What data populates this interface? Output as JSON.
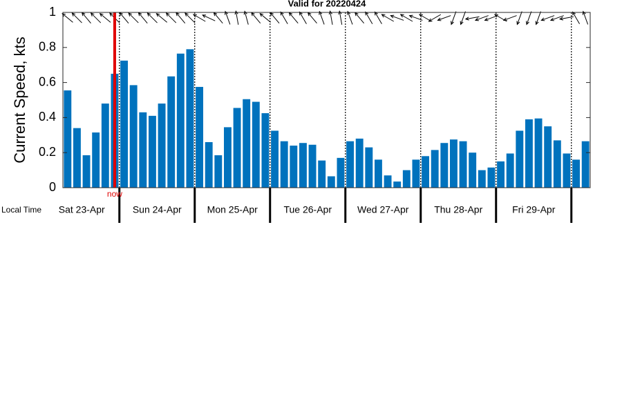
{
  "chart_data": {
    "type": "bar",
    "title": "Valid for 20220424",
    "ylabel": "Current Speed, kts",
    "xlabel": "Local Time",
    "color": "#0072bd",
    "x": [
      7.5,
      10.5,
      13.5,
      16.5,
      19.5,
      22.5,
      25.5,
      28.5,
      31.5,
      34.5,
      37.5,
      40.5,
      43.5,
      46.5,
      49.5,
      52.5,
      55.5,
      58.5,
      61.5,
      64.5,
      67.5,
      70.5,
      73.5,
      76.5,
      79.5,
      82.5,
      85.5,
      88.5,
      91.5,
      94.5,
      97.5,
      100.5,
      103.5,
      106.5,
      109.5,
      112.5,
      115.5,
      118.5,
      121.5,
      124.5,
      127.5,
      130.5,
      133.5,
      136.5,
      139.5,
      142.5,
      145.5,
      148.5,
      151.5,
      154.5,
      157.5,
      160.5,
      163.5,
      166.5,
      169.5,
      172.5
    ],
    "values": [
      0.555,
      0.34,
      0.185,
      0.315,
      0.48,
      0.65,
      0.725,
      0.585,
      0.43,
      0.41,
      0.48,
      0.635,
      0.765,
      0.79,
      0.575,
      0.26,
      0.185,
      0.345,
      0.455,
      0.505,
      0.49,
      0.425,
      0.325,
      0.265,
      0.24,
      0.255,
      0.245,
      0.155,
      0.065,
      0.17,
      0.265,
      0.28,
      0.23,
      0.16,
      0.07,
      0.035,
      0.1,
      0.16,
      0.18,
      0.215,
      0.255,
      0.275,
      0.265,
      0.2,
      0.1,
      0.115,
      0.15,
      0.195,
      0.325,
      0.39,
      0.395,
      0.35,
      0.27,
      0.195,
      0.16,
      0.265
    ],
    "directions": [
      310,
      315,
      320,
      315,
      310,
      315,
      320,
      315,
      320,
      315,
      310,
      315,
      320,
      315,
      300,
      295,
      320,
      340,
      350,
      345,
      320,
      310,
      320,
      330,
      320,
      330,
      320,
      340,
      350,
      350,
      340,
      320,
      330,
      330,
      300,
      290,
      300,
      290,
      300,
      240,
      250,
      200,
      200,
      260,
      250,
      250,
      300,
      250,
      200,
      200,
      200,
      250,
      250,
      260,
      330,
      340
    ],
    "days": [
      {
        "x": 12,
        "label": "Sat 23-Apr"
      },
      {
        "x": 36,
        "label": "Sun 24-Apr"
      },
      {
        "x": 60,
        "label": "Mon 25-Apr"
      },
      {
        "x": 84,
        "label": "Tue 26-Apr"
      },
      {
        "x": 108,
        "label": "Wed 27-Apr"
      },
      {
        "x": 132,
        "label": "Thu 28-Apr"
      },
      {
        "x": 156,
        "label": "Fri 29-Apr"
      }
    ],
    "day_boundaries": [
      24,
      48,
      72,
      96,
      120,
      144,
      168
    ],
    "now": {
      "x": 22.5,
      "label": "now",
      "color": "#e00000"
    },
    "xlim": [
      6,
      174
    ],
    "ylim": [
      0,
      1
    ],
    "yticks": [
      0,
      0.2,
      0.4,
      0.6,
      0.8,
      1
    ]
  }
}
